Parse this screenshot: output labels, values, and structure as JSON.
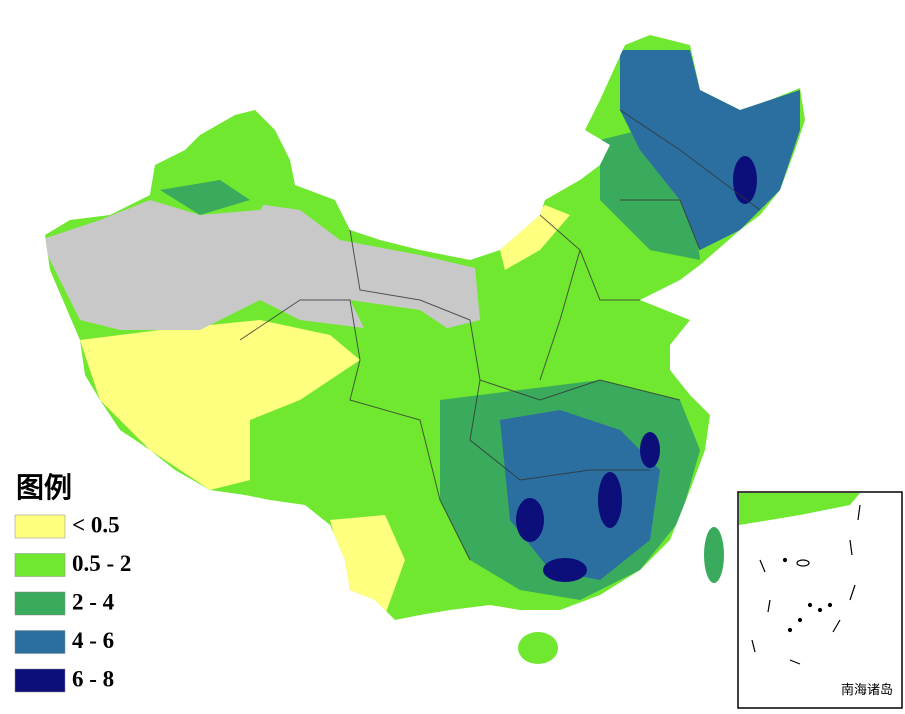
{
  "legend": {
    "title": "图例",
    "items": [
      {
        "label": "< 0.5",
        "color": "#ffff80"
      },
      {
        "label": "0.5 - 2",
        "color": "#70e830"
      },
      {
        "label": "2 - 4",
        "color": "#3aaa5c"
      },
      {
        "label": "4 - 6",
        "color": "#2a6fa0"
      },
      {
        "label": "6 - 8",
        "color": "#0c0f7a"
      }
    ]
  },
  "inset": {
    "label": "南海诸岛"
  }
}
